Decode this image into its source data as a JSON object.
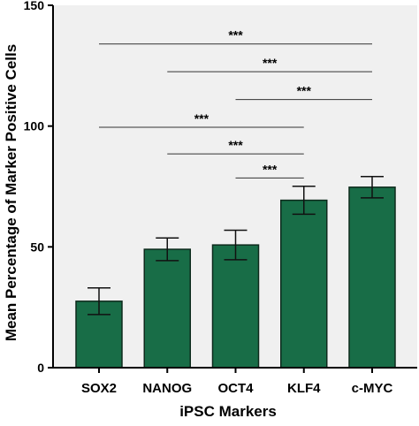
{
  "chart_data": {
    "type": "bar",
    "title": "",
    "xlabel": "iPSC Markers",
    "ylabel": "Mean  Percentage of Marker Positive Cells",
    "categories": [
      "SOX2",
      "NANOG",
      "OCT4",
      "KLF4",
      "c-MYC"
    ],
    "values": [
      27.5,
      49,
      50.8,
      69.3,
      74.7
    ],
    "errors": [
      5.5,
      4.7,
      6.1,
      5.8,
      4.4
    ],
    "ylim": [
      0,
      150
    ],
    "yticks": [
      0,
      50,
      100,
      150
    ],
    "grid": false,
    "legend": "none",
    "significance": [
      {
        "from": "SOX2",
        "to": "c-MYC",
        "label": "***",
        "y": 134
      },
      {
        "from": "NANOG",
        "to": "c-MYC",
        "label": "***",
        "y": 122.5
      },
      {
        "from": "OCT4",
        "to": "c-MYC",
        "label": "***",
        "y": 111
      },
      {
        "from": "SOX2",
        "to": "KLF4",
        "label": "***",
        "y": 99.5
      },
      {
        "from": "NANOG",
        "to": "KLF4",
        "label": "***",
        "y": 88.5
      },
      {
        "from": "OCT4",
        "to": "KLF4",
        "label": "***",
        "y": 78.5
      }
    ],
    "colors": {
      "bar": "#186d47",
      "bar_edge": "#0d2a1c",
      "plot_background": "#f0f0f0"
    }
  }
}
